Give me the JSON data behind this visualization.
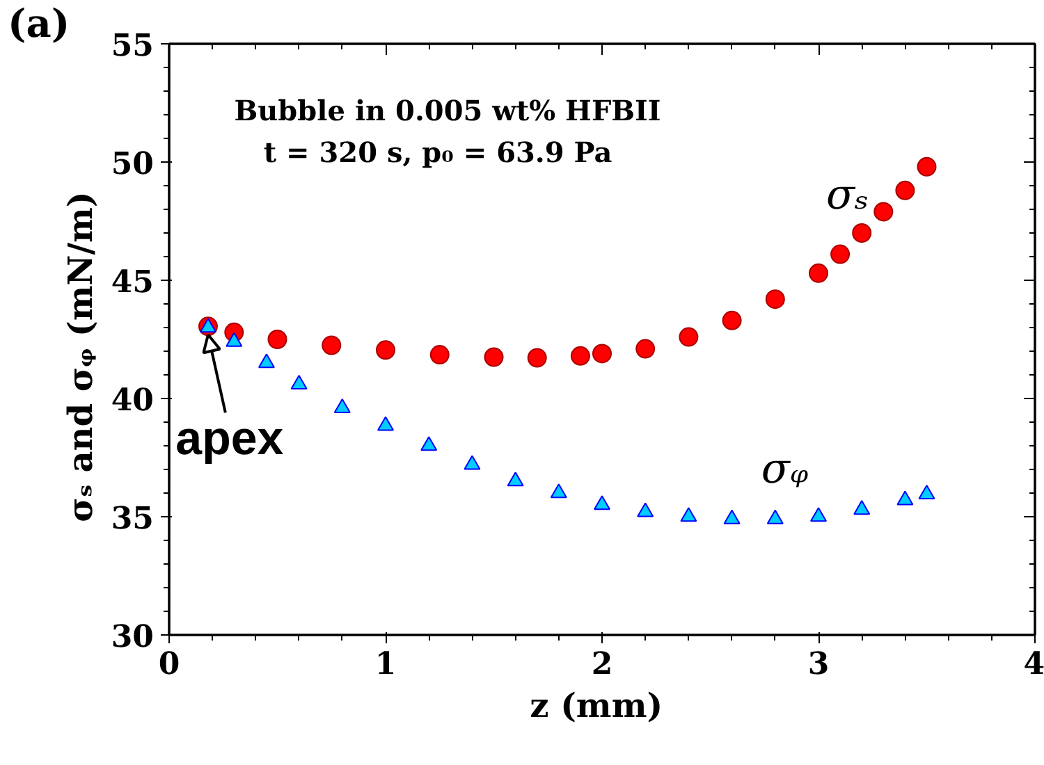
{
  "chart_data": {
    "type": "scatter",
    "annotations": [
      "(a)",
      "Bubble in 0.005 wt% HFBII",
      "t = 320 s,   p₀ = 63.9 Pa",
      {
        "text": "apex",
        "x": 0.18,
        "y": 43.0
      }
    ],
    "xlabel": "z  (mm)",
    "ylabel": "σₛ  and  σᵩ  (mN/m)",
    "xlim": [
      0,
      4
    ],
    "xticks": [
      0,
      1,
      2,
      3,
      4
    ],
    "ylim": [
      30,
      55
    ],
    "yticks": [
      30,
      35,
      40,
      45,
      50,
      55
    ],
    "grid": false,
    "series": [
      {
        "name": "σₛ",
        "color": "#ff0000",
        "marker": "circle",
        "x": [
          0.18,
          0.3,
          0.5,
          0.75,
          1.0,
          1.25,
          1.5,
          1.7,
          1.9,
          2.0,
          2.2,
          2.4,
          2.6,
          2.8,
          3.0,
          3.1,
          3.2,
          3.3,
          3.4,
          3.5
        ],
        "values": [
          43.05,
          42.8,
          42.5,
          42.25,
          42.05,
          41.85,
          41.75,
          41.72,
          41.8,
          41.9,
          42.1,
          42.6,
          43.3,
          44.2,
          45.3,
          46.1,
          47.0,
          47.9,
          48.8,
          49.8
        ]
      },
      {
        "name": "σᵩ",
        "color": "#00ccff",
        "marker": "triangle",
        "x": [
          0.18,
          0.3,
          0.45,
          0.6,
          0.8,
          1.0,
          1.2,
          1.4,
          1.6,
          1.8,
          2.0,
          2.2,
          2.4,
          2.6,
          2.8,
          3.0,
          3.2,
          3.4,
          3.5
        ],
        "values": [
          43.0,
          42.4,
          41.5,
          40.6,
          39.6,
          38.85,
          38.0,
          37.2,
          36.5,
          36.0,
          35.5,
          35.2,
          35.0,
          34.9,
          34.9,
          35.0,
          35.3,
          35.7,
          35.95
        ]
      }
    ]
  }
}
